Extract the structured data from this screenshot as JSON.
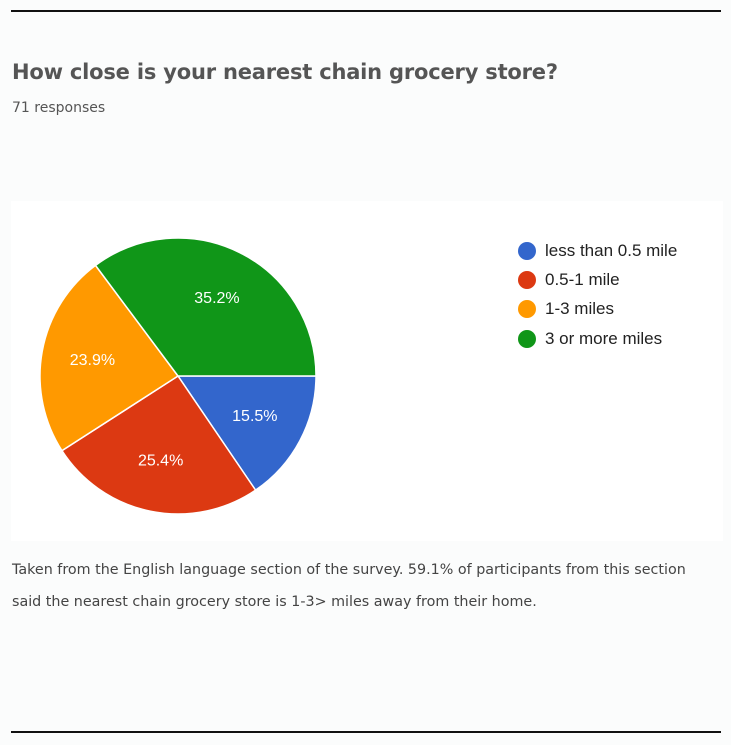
{
  "header": {
    "title": "How close is your nearest chain grocery store?",
    "responses": "71 responses"
  },
  "chart_data": {
    "type": "pie",
    "categories": [
      "less than 0.5 mile",
      "0.5-1 mile",
      "1-3 miles",
      "3 or more miles"
    ],
    "values": [
      15.5,
      25.4,
      23.9,
      35.2
    ],
    "labels": [
      "15.5%",
      "25.4%",
      "23.9%",
      "35.2%"
    ],
    "colors": [
      "#3366cc",
      "#dc3912",
      "#ff9900",
      "#109618"
    ],
    "legend_position": "right"
  },
  "caption": {
    "line1": "Taken from the English language section of the survey. 59.1% of participants from this section",
    "line2": "said the nearest chain grocery store is 1-3> miles away from their home."
  }
}
